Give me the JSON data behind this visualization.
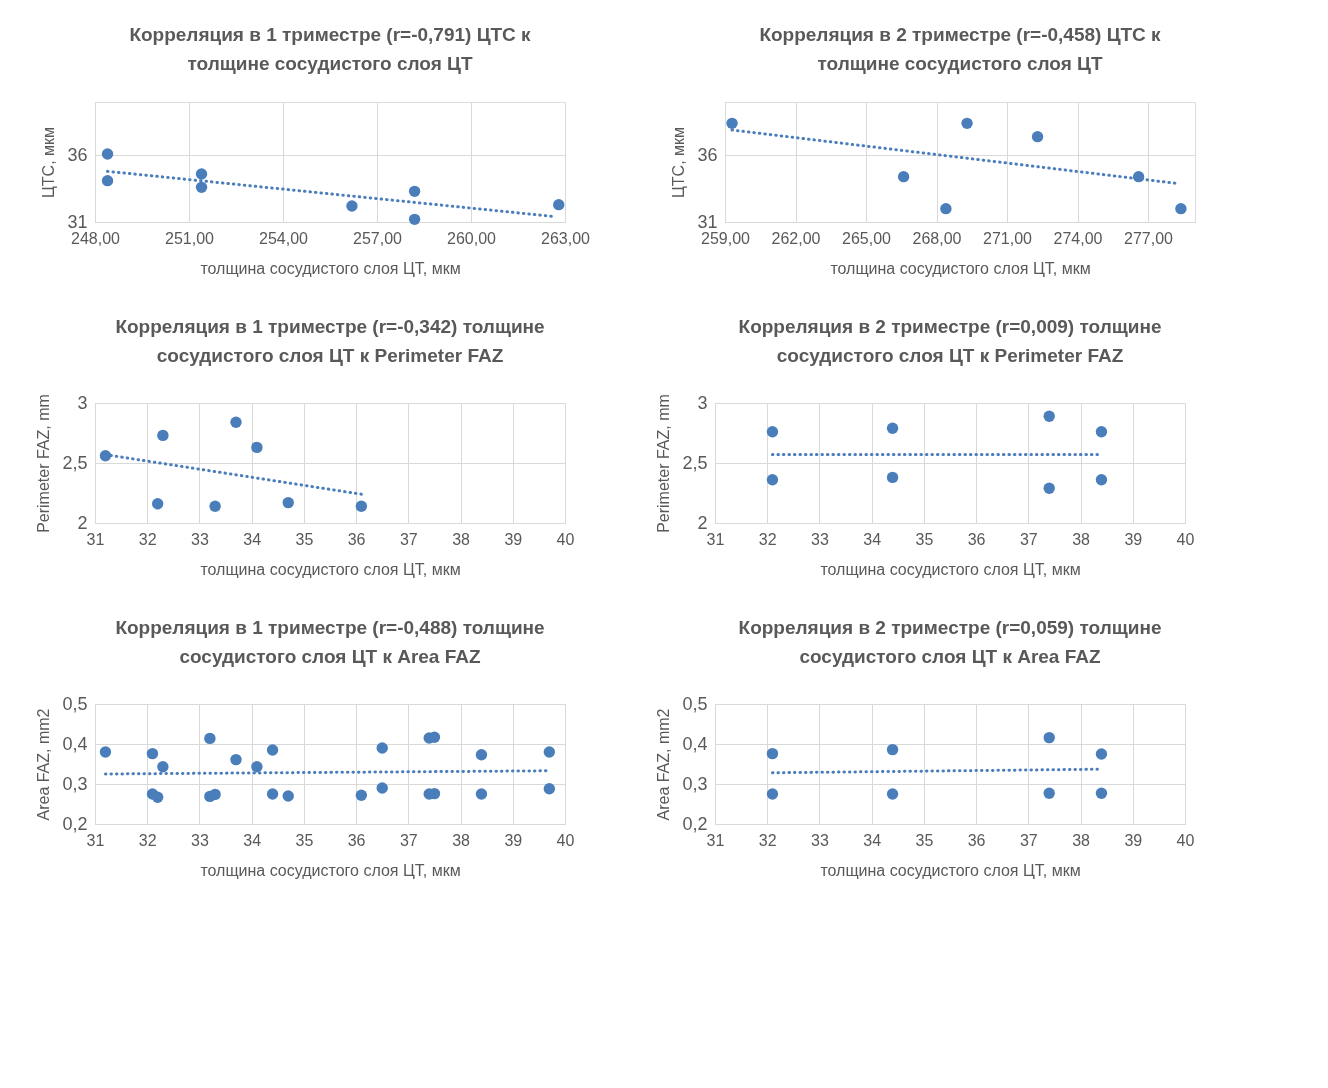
{
  "chart_data": [
    {
      "type": "scatter",
      "title": "Корреляция в 1 триместре (r=-0,791) ЦТС к\nтолщине сосудистого слоя ЦТ",
      "xlabel": "толщина сосудистого слоя ЦТ, мкм",
      "ylabel": "ЦТС, мкм",
      "xlim": [
        248,
        263
      ],
      "xticks": [
        {
          "value": 248,
          "label": "248,00"
        },
        {
          "value": 251,
          "label": "251,00"
        },
        {
          "value": 254,
          "label": "254,00"
        },
        {
          "value": 257,
          "label": "257,00"
        },
        {
          "value": 260,
          "label": "260,00"
        },
        {
          "value": 263,
          "label": "263,00"
        }
      ],
      "ylim": [
        31,
        40
      ],
      "yticks": [
        31,
        36
      ],
      "grid": true,
      "marker": "circle",
      "series": [
        {
          "type": "scatter",
          "color": "#4a7ebb",
          "x": [
            248.4,
            248.4,
            251.4,
            251.4,
            256.2,
            258.2,
            258.2,
            262.8
          ],
          "values": [
            36.1,
            34.1,
            34.6,
            33.6,
            32.2,
            33.3,
            31.2,
            32.3
          ]
        },
        {
          "type": "line",
          "color": "#4a7ebb",
          "line_style": "dotted",
          "marker": "none",
          "x": [
            248.4,
            262.7
          ],
          "values": [
            34.8,
            31.4
          ]
        }
      ]
    },
    {
      "type": "scatter",
      "title": "Корреляция в 2 триместре (r=-0,458) ЦТС к\nтолщине сосудистого слоя ЦТ",
      "xlabel": "толщина сосудистого слоя ЦТ, мкм",
      "ylabel": "ЦТС, мкм",
      "xlim": [
        259,
        279
      ],
      "xticks": [
        {
          "value": 259,
          "label": "259,00"
        },
        {
          "value": 262,
          "label": "262,00"
        },
        {
          "value": 265,
          "label": "265,00"
        },
        {
          "value": 268,
          "label": "268,00"
        },
        {
          "value": 271,
          "label": "271,00"
        },
        {
          "value": 274,
          "label": "274,00"
        },
        {
          "value": 277,
          "label": "277,00"
        }
      ],
      "ylim": [
        31,
        40
      ],
      "yticks": [
        31,
        36
      ],
      "grid": true,
      "marker": "circle",
      "series": [
        {
          "type": "scatter",
          "color": "#4a7ebb",
          "x": [
            259.3,
            266.6,
            268.4,
            269.3,
            272.3,
            276.6,
            278.4
          ],
          "values": [
            38.4,
            34.4,
            32.0,
            38.4,
            37.4,
            34.4,
            32.0
          ]
        },
        {
          "type": "line",
          "color": "#4a7ebb",
          "line_style": "dotted",
          "marker": "none",
          "x": [
            259.3,
            278.2
          ],
          "values": [
            37.9,
            33.9
          ]
        }
      ]
    },
    {
      "type": "scatter",
      "title": "Корреляция в 1 триместре (r=-0,342) толщине\nсосудистого слоя ЦТ к Perimeter FAZ",
      "xlabel": "толщина сосудистого слоя ЦТ, мкм",
      "ylabel": "Perimeter FAZ, mm",
      "xlim": [
        31,
        40
      ],
      "xticks": [
        31,
        32,
        33,
        34,
        35,
        36,
        37,
        38,
        39,
        40
      ],
      "ylim": [
        2,
        3
      ],
      "yticks": [
        2,
        {
          "value": 2.5,
          "label": "2,5"
        },
        3
      ],
      "grid": true,
      "marker": "circle",
      "series": [
        {
          "type": "scatter",
          "color": "#4a7ebb",
          "x": [
            31.2,
            32.2,
            32.3,
            33.3,
            33.7,
            34.1,
            34.7,
            36.1
          ],
          "values": [
            2.56,
            2.16,
            2.73,
            2.14,
            2.84,
            2.63,
            2.17,
            2.14
          ]
        },
        {
          "type": "line",
          "color": "#4a7ebb",
          "line_style": "dotted",
          "marker": "none",
          "x": [
            31.2,
            36.1
          ],
          "values": [
            2.57,
            2.24
          ]
        }
      ]
    },
    {
      "type": "scatter",
      "title": "Корреляция в 2 триместре (r=0,009) толщине\nсосудистого слоя ЦТ к Perimeter FAZ",
      "xlabel": "толщина сосудистого слоя ЦТ, мкм",
      "ylabel": "Perimeter FAZ, mm",
      "xlim": [
        31,
        40
      ],
      "xticks": [
        31,
        32,
        33,
        34,
        35,
        36,
        37,
        38,
        39,
        40
      ],
      "ylim": [
        2,
        3
      ],
      "yticks": [
        2,
        {
          "value": 2.5,
          "label": "2,5"
        },
        3
      ],
      "grid": true,
      "marker": "circle",
      "series": [
        {
          "type": "scatter",
          "color": "#4a7ebb",
          "x": [
            32.1,
            32.1,
            34.4,
            34.4,
            37.4,
            37.4,
            38.4,
            38.4
          ],
          "values": [
            2.76,
            2.36,
            2.79,
            2.38,
            2.89,
            2.29,
            2.76,
            2.36
          ]
        },
        {
          "type": "line",
          "color": "#4a7ebb",
          "line_style": "dotted",
          "marker": "none",
          "x": [
            32.1,
            38.4
          ],
          "values": [
            2.57,
            2.57
          ]
        }
      ]
    },
    {
      "type": "scatter",
      "title": "Корреляция в 1 триместре (r=-0,488) толщине\nсосудистого слоя ЦТ к Area FAZ",
      "xlabel": "толщина сосудистого слоя ЦТ, мкм",
      "ylabel": "Area FAZ, mm2",
      "xlim": [
        31,
        40
      ],
      "xticks": [
        31,
        32,
        33,
        34,
        35,
        36,
        37,
        38,
        39,
        40
      ],
      "ylim": [
        0.2,
        0.5
      ],
      "yticks": [
        {
          "value": 0.2,
          "label": "0,2"
        },
        {
          "value": 0.3,
          "label": "0,3"
        },
        {
          "value": 0.4,
          "label": "0,4"
        },
        {
          "value": 0.5,
          "label": "0,5"
        }
      ],
      "grid": true,
      "marker": "circle",
      "series": [
        {
          "type": "scatter",
          "color": "#4a7ebb",
          "x": [
            31.2,
            32.1,
            32.1,
            32.2,
            32.3,
            33.2,
            33.2,
            33.3,
            33.7,
            34.1,
            34.4,
            34.4,
            34.7,
            36.1,
            36.5,
            36.5,
            37.4,
            37.4,
            37.5,
            37.5,
            38.4,
            38.4,
            39.7,
            39.7
          ],
          "values": [
            0.38,
            0.376,
            0.275,
            0.267,
            0.343,
            0.414,
            0.269,
            0.274,
            0.361,
            0.343,
            0.385,
            0.275,
            0.27,
            0.272,
            0.39,
            0.29,
            0.415,
            0.275,
            0.417,
            0.276,
            0.373,
            0.275,
            0.38,
            0.288
          ]
        },
        {
          "type": "line",
          "color": "#4a7ebb",
          "line_style": "dotted",
          "marker": "none",
          "x": [
            31.2,
            39.7
          ],
          "values": [
            0.325,
            0.333
          ]
        }
      ]
    },
    {
      "type": "scatter",
      "title": "Корреляция в 2 триместре (r=0,059) толщине\nсосудистого слоя ЦТ к Area FAZ",
      "xlabel": "толщина сосудистого слоя ЦТ, мкм",
      "ylabel": "Area FAZ, mm2",
      "xlim": [
        31,
        40
      ],
      "xticks": [
        31,
        32,
        33,
        34,
        35,
        36,
        37,
        38,
        39,
        40
      ],
      "ylim": [
        0.2,
        0.5
      ],
      "yticks": [
        {
          "value": 0.2,
          "label": "0,2"
        },
        {
          "value": 0.3,
          "label": "0,3"
        },
        {
          "value": 0.4,
          "label": "0,4"
        },
        {
          "value": 0.5,
          "label": "0,5"
        }
      ],
      "grid": true,
      "marker": "circle",
      "series": [
        {
          "type": "scatter",
          "color": "#4a7ebb",
          "x": [
            32.1,
            32.1,
            34.4,
            34.4,
            37.4,
            37.4,
            38.4,
            38.4
          ],
          "values": [
            0.376,
            0.275,
            0.386,
            0.275,
            0.416,
            0.277,
            0.375,
            0.277
          ]
        },
        {
          "type": "line",
          "color": "#4a7ebb",
          "line_style": "dotted",
          "marker": "none",
          "x": [
            32.1,
            38.4
          ],
          "values": [
            0.328,
            0.337
          ]
        }
      ]
    }
  ]
}
